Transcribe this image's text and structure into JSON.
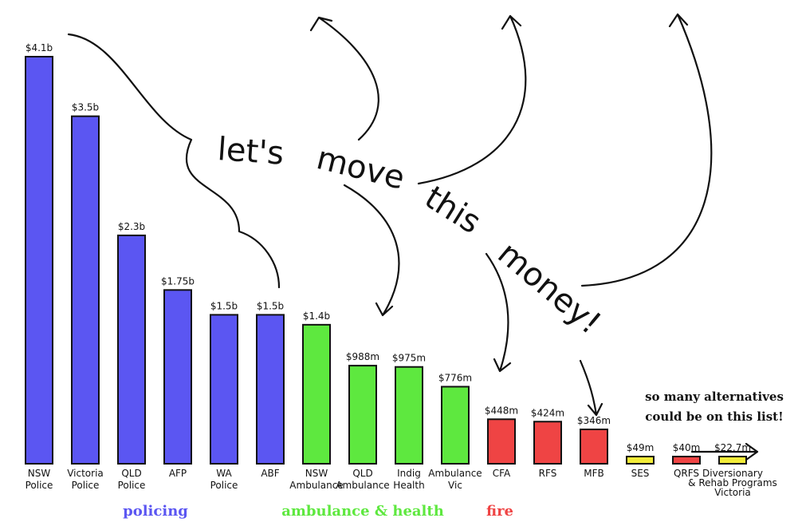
{
  "chart_data": {
    "type": "bar",
    "title": "",
    "xlabel": "",
    "ylabel": "",
    "ylim": [
      0,
      4.2
    ],
    "unit": "$ billions",
    "categories": [
      "NSW Police",
      "Victoria Police",
      "QLD Police",
      "AFP",
      "WA Police",
      "ABF",
      "NSW Ambulance",
      "QLD Ambulance",
      "Indig Health",
      "Ambulance Vic",
      "CFA",
      "RFS",
      "MFB",
      "SES",
      "QRFS",
      "Diversionary & Rehab Programs Victoria"
    ],
    "values": [
      4.1,
      3.5,
      2.3,
      1.75,
      1.5,
      1.5,
      1.4,
      0.988,
      0.975,
      0.776,
      0.448,
      0.424,
      0.346,
      0.049,
      0.04,
      0.0227
    ],
    "value_labels": [
      "$4.1b",
      "$3.5b",
      "$2.3b",
      "$1.75b",
      "$1.5b",
      "$1.5b",
      "$1.4b",
      "$988m",
      "$975m",
      "$776m",
      "$448m",
      "$424m",
      "$346m",
      "$49m",
      "$40m",
      "$22.7m"
    ],
    "category_label_lines": [
      [
        "NSW",
        "Police"
      ],
      [
        "Victoria",
        "Police"
      ],
      [
        "QLD",
        "Police"
      ],
      [
        "AFP"
      ],
      [
        "WA",
        "Police"
      ],
      [
        "ABF"
      ],
      [
        "NSW",
        "Ambulance"
      ],
      [
        "QLD",
        "Ambulance"
      ],
      [
        "Indig",
        "Health"
      ],
      [
        "Ambulance",
        "Vic"
      ],
      [
        "CFA"
      ],
      [
        "RFS"
      ],
      [
        "MFB"
      ],
      [
        "SES"
      ],
      [
        "QRFS"
      ],
      [
        "Diversionary",
        "& Rehab Programs",
        "Victoria"
      ]
    ],
    "bar_group": [
      "policing",
      "policing",
      "policing",
      "policing",
      "policing",
      "policing",
      "ambulance & health",
      "ambulance & health",
      "ambulance & health",
      "ambulance & health",
      "fire",
      "fire",
      "fire",
      "other",
      "fire",
      "other"
    ],
    "colors": {
      "policing": "#5b56f2",
      "ambulance & health": "#5ee83f",
      "fire": "#ef4444",
      "other": "#f2ec38"
    },
    "groups": [
      {
        "label": "policing",
        "color": "#5b56f2"
      },
      {
        "label": "ambulance & health",
        "color": "#5ee83f"
      },
      {
        "label": "fire",
        "color": "#ef4444"
      }
    ],
    "grid": false,
    "legend": "none"
  },
  "annotation": {
    "slogan_words": [
      "let's",
      "move",
      "this",
      "money!"
    ],
    "side_note": [
      "so many alternatives",
      "could be on this list!"
    ]
  }
}
